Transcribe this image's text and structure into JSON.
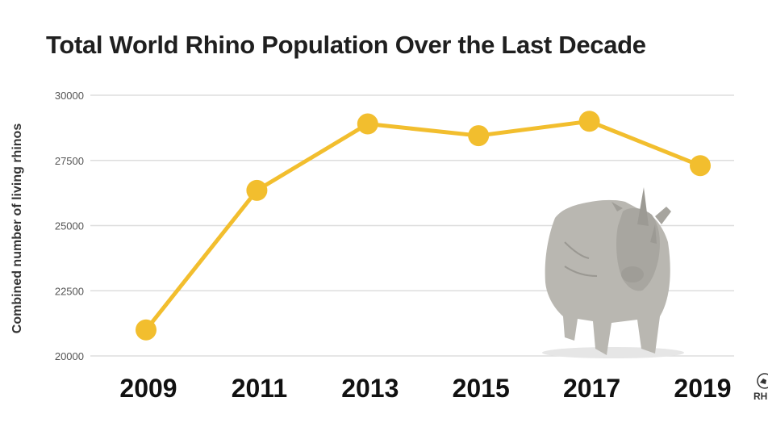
{
  "chart_data": {
    "type": "line",
    "title": "Total World Rhino Population Over the Last Decade",
    "xlabel": "",
    "ylabel": "Combined number of living rhinos",
    "categories": [
      "2009",
      "2011",
      "2013",
      "2015",
      "2017",
      "2019"
    ],
    "series": [
      {
        "values": [
          21000,
          26350,
          28900,
          28450,
          29000,
          27300
        ]
      }
    ],
    "ylim": [
      20000,
      30000
    ],
    "yticks": [
      "30000",
      "27500",
      "25000",
      "22500",
      "20000"
    ],
    "grid": true,
    "line_color": "#F2BE2E",
    "grid_color": "#DDDDDD"
  },
  "logo": {
    "text": "RH",
    "icon": "rhino-logo-icon"
  }
}
